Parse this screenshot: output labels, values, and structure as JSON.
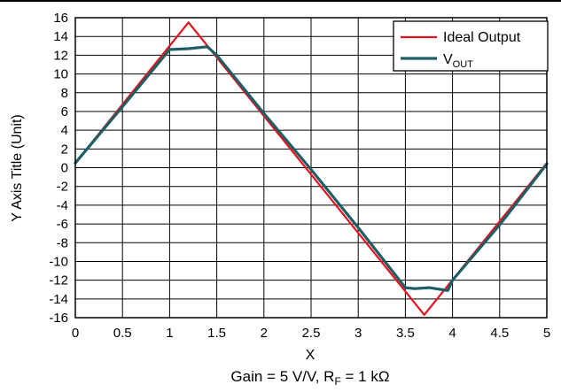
{
  "chart_data": {
    "type": "line",
    "title": "",
    "xlabel": "X",
    "ylabel": "Y Axis Title (Unit)",
    "caption": {
      "prefix": "Gain = 5 V/V, R",
      "subscript": "F",
      "suffix": " = 1 kΩ"
    },
    "xlim": [
      0,
      5
    ],
    "ylim": [
      -16,
      16
    ],
    "x_ticks": [
      0,
      0.5,
      1,
      1.5,
      2,
      2.5,
      3,
      3.5,
      4,
      4.5,
      5
    ],
    "x_tick_labels": [
      "0",
      "0.5",
      "1",
      "1.5",
      "2",
      "2.5",
      "3",
      "3.5",
      "4",
      "4.5",
      "5"
    ],
    "y_ticks": [
      16,
      14,
      12,
      10,
      8,
      6,
      4,
      2,
      0,
      -2,
      -4,
      -6,
      -8,
      -10,
      -12,
      -14,
      -16
    ],
    "y_tick_labels": [
      "16",
      "14",
      "12",
      "10",
      "8",
      "6",
      "4",
      "2",
      "0",
      "-2",
      "-4",
      "-6",
      "-8",
      "-10",
      "-12",
      "-14",
      "-16"
    ],
    "grid": true,
    "legend_position": "top-right",
    "series": [
      {
        "name": "Ideal Output",
        "legend_label": "Ideal Output",
        "color": "#e8101c",
        "x": [
          0,
          1.2,
          3.7,
          5
        ],
        "y": [
          0.5,
          15.5,
          -15.7,
          0.5
        ]
      },
      {
        "name": "VOUT",
        "legend_label_main": "V",
        "legend_label_sub": "OUT",
        "color": "#1e5e66",
        "x": [
          0,
          0.5,
          1.0,
          1.2,
          1.4,
          1.5,
          2.0,
          2.5,
          3.0,
          3.5,
          3.6,
          3.75,
          3.95,
          4.0,
          4.5,
          5.0
        ],
        "y": [
          0.5,
          6.5,
          12.6,
          12.7,
          12.9,
          12.0,
          5.8,
          -0.2,
          -6.4,
          -12.8,
          -12.9,
          -12.8,
          -13.1,
          -12.0,
          -6.1,
          0.4
        ]
      }
    ]
  }
}
